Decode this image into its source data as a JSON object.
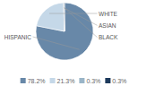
{
  "chart_data": {
    "type": "pie",
    "categories": [
      "HISPANIC",
      "WHITE",
      "ASIAN",
      "BLACK"
    ],
    "values": [
      78.2,
      21.3,
      0.3,
      0.3
    ],
    "value_labels": [
      "78.2%",
      "21.3%",
      "0.3%",
      "0.3%"
    ],
    "colors": [
      "#6888a8",
      "#c5d8e8",
      "#9ab5c8",
      "#1e3a5c"
    ],
    "legend": "bottom"
  }
}
